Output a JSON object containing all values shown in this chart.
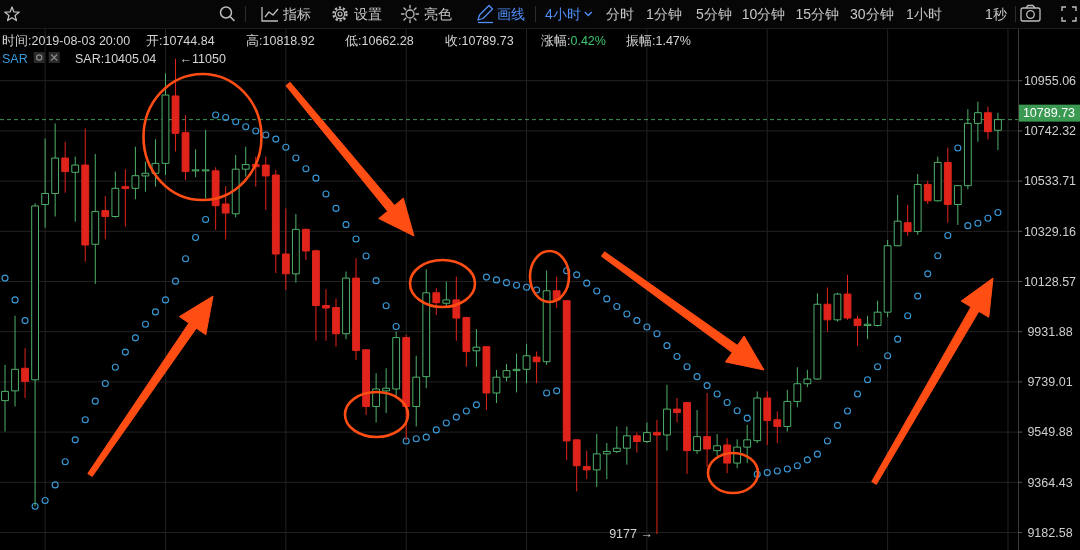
{
  "chart_data": {
    "type": "candlestick",
    "categories": [
      null,
      null,
      null,
      null,
      null,
      null,
      null,
      null,
      null,
      null,
      null,
      null,
      null,
      null,
      null,
      null,
      null,
      null,
      null,
      null,
      null,
      null,
      null,
      null,
      null,
      null,
      null,
      null,
      null,
      null,
      null,
      null,
      null,
      null,
      null,
      null,
      null,
      null,
      null,
      null,
      null,
      null,
      null,
      null,
      null,
      null,
      null,
      null,
      null,
      null,
      null,
      null,
      null,
      null,
      null,
      null,
      null,
      null,
      null,
      null,
      null,
      null,
      null,
      null,
      null,
      null,
      null,
      null,
      null,
      null,
      null,
      null,
      null,
      null,
      null,
      null,
      null,
      null,
      null,
      null,
      null,
      null,
      null,
      null,
      null,
      null,
      null,
      null,
      null,
      null,
      null,
      null,
      null,
      null,
      null,
      null,
      null,
      null,
      null,
      null
    ],
    "ohlc": [
      [
        9668,
        9804,
        9552,
        9703
      ],
      [
        9705,
        9994,
        9646,
        9787
      ],
      [
        9791,
        9868,
        9678,
        9741
      ],
      [
        9747,
        10443,
        9277,
        10432
      ],
      [
        10438,
        10711,
        10344,
        10483
      ],
      [
        10483,
        10774,
        10389,
        10629
      ],
      [
        10629,
        10697,
        10486,
        10573
      ],
      [
        10570,
        10635,
        10368,
        10600
      ],
      [
        10600,
        10753,
        10207,
        10274
      ],
      [
        10277,
        10646,
        10119,
        10409
      ],
      [
        10413,
        10472,
        10297,
        10389
      ],
      [
        10389,
        10573,
        10384,
        10504
      ],
      [
        10511,
        10583,
        10348,
        10503
      ],
      [
        10504,
        10676,
        10459,
        10556
      ],
      [
        10555,
        10614,
        10490,
        10566
      ],
      [
        10566,
        10707,
        10511,
        10607
      ],
      [
        10607,
        10987,
        10559,
        10894
      ],
      [
        10890,
        11050,
        10656,
        10732
      ],
      [
        10735,
        10809,
        10538,
        10573
      ],
      [
        10576,
        10665,
        10550,
        10580
      ],
      [
        10576,
        10746,
        10463,
        10580
      ],
      [
        10576,
        10591,
        10335,
        10433
      ],
      [
        10440,
        10513,
        10297,
        10403
      ],
      [
        10400,
        10642,
        10386,
        10583
      ],
      [
        10583,
        10676,
        10552,
        10602
      ],
      [
        10602,
        10635,
        10511,
        10593
      ],
      [
        10600,
        10635,
        10416,
        10555
      ],
      [
        10559,
        10580,
        10162,
        10238
      ],
      [
        10238,
        10422,
        10095,
        10159
      ],
      [
        10159,
        10399,
        10124,
        10337
      ],
      [
        10337,
        10340,
        10214,
        10250
      ],
      [
        10251,
        10255,
        9897,
        10034
      ],
      [
        10034,
        10098,
        9897,
        10024
      ],
      [
        10026,
        10062,
        9874,
        9924
      ],
      [
        9924,
        10168,
        9903,
        10142
      ],
      [
        10142,
        10221,
        9823,
        9859
      ],
      [
        9862,
        9865,
        9614,
        9646
      ],
      [
        9646,
        9772,
        9586,
        9712
      ],
      [
        9705,
        9791,
        9621,
        9715
      ],
      [
        9712,
        9932,
        9678,
        9909
      ],
      [
        9909,
        9920,
        9521,
        9646
      ],
      [
        9646,
        9839,
        9571,
        9757
      ],
      [
        9759,
        10177,
        9715,
        10084
      ],
      [
        10084,
        10102,
        9997,
        10045
      ],
      [
        10043,
        10128,
        10030,
        10056
      ],
      [
        10056,
        10148,
        9897,
        9985
      ],
      [
        9987,
        9990,
        9797,
        9855
      ],
      [
        9858,
        9942,
        9797,
        9872
      ],
      [
        9874,
        9876,
        9633,
        9697
      ],
      [
        9697,
        9785,
        9659,
        9757
      ],
      [
        9757,
        9808,
        9741,
        9782
      ],
      [
        9782,
        9847,
        9699,
        9787
      ],
      [
        9787,
        9885,
        9734,
        9839
      ],
      [
        9834,
        9855,
        9734,
        9816
      ],
      [
        9816,
        10172,
        9804,
        10092
      ],
      [
        10092,
        10148,
        10024,
        10056
      ],
      [
        10053,
        10055,
        9447,
        9517
      ],
      [
        9521,
        9523,
        9331,
        9425
      ],
      [
        9422,
        9481,
        9376,
        9410
      ],
      [
        9410,
        9543,
        9347,
        9469
      ],
      [
        9469,
        9509,
        9376,
        9478
      ],
      [
        9478,
        9571,
        9472,
        9490
      ],
      [
        9490,
        9571,
        9429,
        9536
      ],
      [
        9536,
        9548,
        9474,
        9515
      ],
      [
        9515,
        9586,
        9509,
        9548
      ],
      [
        9548,
        9596,
        9177,
        9539
      ],
      [
        9539,
        9728,
        9481,
        9636
      ],
      [
        9636,
        9678,
        9586,
        9623
      ],
      [
        9661,
        9663,
        9395,
        9481
      ],
      [
        9481,
        9633,
        9469,
        9533
      ],
      [
        9533,
        9697,
        9420,
        9487
      ],
      [
        9481,
        9543,
        9462,
        9499
      ],
      [
        9502,
        9527,
        9398,
        9435
      ],
      [
        9435,
        9523,
        9416,
        9494
      ],
      [
        9494,
        9577,
        9435,
        9521
      ],
      [
        9518,
        9703,
        9509,
        9678
      ],
      [
        9678,
        9703,
        9502,
        9593
      ],
      [
        9596,
        9627,
        9509,
        9571
      ],
      [
        9571,
        9709,
        9552,
        9665
      ],
      [
        9665,
        9795,
        9643,
        9732
      ],
      [
        9732,
        9785,
        9719,
        9750
      ],
      [
        9750,
        10082,
        9747,
        10039
      ],
      [
        10039,
        10105,
        9932,
        9978
      ],
      [
        9978,
        10084,
        9971,
        10079
      ],
      [
        10079,
        10155,
        9978,
        9985
      ],
      [
        9981,
        9994,
        9877,
        9956
      ],
      [
        9956,
        9994,
        9903,
        9961
      ],
      [
        9956,
        10053,
        9952,
        10008
      ],
      [
        10008,
        10294,
        9988,
        10271
      ],
      [
        10271,
        10477,
        10269,
        10370
      ],
      [
        10364,
        10436,
        10311,
        10328
      ],
      [
        10328,
        10563,
        10315,
        10520
      ],
      [
        10520,
        10535,
        10440,
        10453
      ],
      [
        10453,
        10635,
        10450,
        10611
      ],
      [
        10611,
        10672,
        10364,
        10438
      ],
      [
        10438,
        10518,
        10355,
        10515
      ],
      [
        10515,
        10834,
        10500,
        10774
      ],
      [
        10774,
        10866,
        10697,
        10819
      ],
      [
        10819,
        10845,
        10707,
        10739
      ],
      [
        10744.84,
        10818.92,
        10662.28,
        10789.73
      ]
    ],
    "colors": [
      "#4fb06a",
      "#4fb06a",
      "#e0241b",
      "#4fb06a",
      "#4fb06a",
      "#4fb06a",
      "#e0241b",
      "#4fb06a",
      "#e0241b",
      "#4fb06a",
      "#e0241b",
      "#4fb06a",
      "#e0241b",
      "#4fb06a",
      "#4fb06a",
      "#4fb06a",
      "#4fb06a",
      "#e0241b",
      "#e0241b",
      "#4fb06a",
      "#4fb06a",
      "#e0241b",
      "#e0241b",
      "#4fb06a",
      "#4fb06a",
      "#e0241b",
      "#e0241b",
      "#e0241b",
      "#e0241b",
      "#4fb06a",
      "#e0241b",
      "#e0241b",
      "#e0241b",
      "#e0241b",
      "#4fb06a",
      "#e0241b",
      "#e0241b",
      "#4fb06a",
      "#4fb06a",
      "#4fb06a",
      "#e0241b",
      "#4fb06a",
      "#4fb06a",
      "#e0241b",
      "#4fb06a",
      "#e0241b",
      "#e0241b",
      "#4fb06a",
      "#e0241b",
      "#4fb06a",
      "#4fb06a",
      "#4fb06a",
      "#4fb06a",
      "#e0241b",
      "#4fb06a",
      "#e0241b",
      "#e0241b",
      "#e0241b",
      "#e0241b",
      "#4fb06a",
      "#4fb06a",
      "#4fb06a",
      "#4fb06a",
      "#e0241b",
      "#4fb06a",
      "#e0241b",
      "#4fb06a",
      "#e0241b",
      "#e0241b",
      "#4fb06a",
      "#e0241b",
      "#4fb06a",
      "#e0241b",
      "#4fb06a",
      "#4fb06a",
      "#4fb06a",
      "#e0241b",
      "#e0241b",
      "#4fb06a",
      "#4fb06a",
      "#4fb06a",
      "#4fb06a",
      "#e0241b",
      "#4fb06a",
      "#e0241b",
      "#e0241b",
      "#4fb06a",
      "#4fb06a",
      "#4fb06a",
      "#4fb06a",
      "#e0241b",
      "#4fb06a",
      "#e0241b",
      "#4fb06a",
      "#e0241b",
      "#4fb06a",
      "#4fb06a",
      "#4fb06a",
      "#e0241b",
      "#4fb06a"
    ],
    "series": [
      {
        "name": "SAR",
        "type": "scatter",
        "marker": "circle",
        "color": "#3a9ad9",
        "values": [
          10142,
          10056,
          9975,
          9277,
          9298,
          9355,
          9440,
          9521,
          9596,
          9666,
          9733,
          9795,
          9853,
          9908,
          9961,
          10009,
          10056,
          10130,
          10219,
          10304,
          10377,
          10809,
          10799,
          10781,
          10760,
          10742,
          10725,
          10708,
          10674,
          10629,
          10585,
          10546,
          10481,
          10422,
          10356,
          10298,
          10230,
          10132,
          10033,
          9952,
          9517,
          9525,
          9531,
          9558,
          9584,
          9606,
          9629,
          9652,
          10146,
          10135,
          10124,
          10114,
          10106,
          10095,
          9697,
          9705,
          10171,
          10155,
          10122,
          10091,
          10060,
          10030,
          10001,
          9975,
          9950,
          9924,
          9878,
          9836,
          9797,
          9759,
          9725,
          9693,
          9661,
          9630,
          9602,
          9394,
          9400,
          9406,
          9413,
          9425,
          9447,
          9468,
          9517,
          9575,
          9629,
          9693,
          9747,
          9797,
          9839,
          9903,
          9994,
          10071,
          10159,
          10231,
          10312,
          10671,
          10352,
          10362,
          10382,
          10405.04
        ]
      }
    ],
    "log": true,
    "ylim": [
      9120,
      11183
    ],
    "yticks": [
      10955.06,
      10742.32,
      10533.71,
      10329.16,
      10128.57,
      9931.88,
      9739.01,
      9549.88,
      9364.43,
      9182.58
    ],
    "grid": true,
    "tick_labels": "y",
    "ref_lines": [
      {
        "axis": "y",
        "value": 10789.73,
        "label": "10789.73",
        "color": "#3a9a52",
        "line_style": "dashed"
      }
    ],
    "annotations": [
      "指标",
      "设置",
      "亮色",
      "画线",
      "4小时",
      "分时",
      "1分钟",
      "5分钟",
      "10分钟",
      "15分钟",
      "30分钟",
      "1小时",
      "1秒",
      "时间:2019-08-03 20:00",
      "开:10744.84",
      "高:10818.92",
      "低:10662.28",
      "收:10789.73",
      "涨幅:0.42%",
      "振幅:1.47%",
      "SAR:10405.04",
      "←11050",
      "9177 →"
    ]
  }
}
